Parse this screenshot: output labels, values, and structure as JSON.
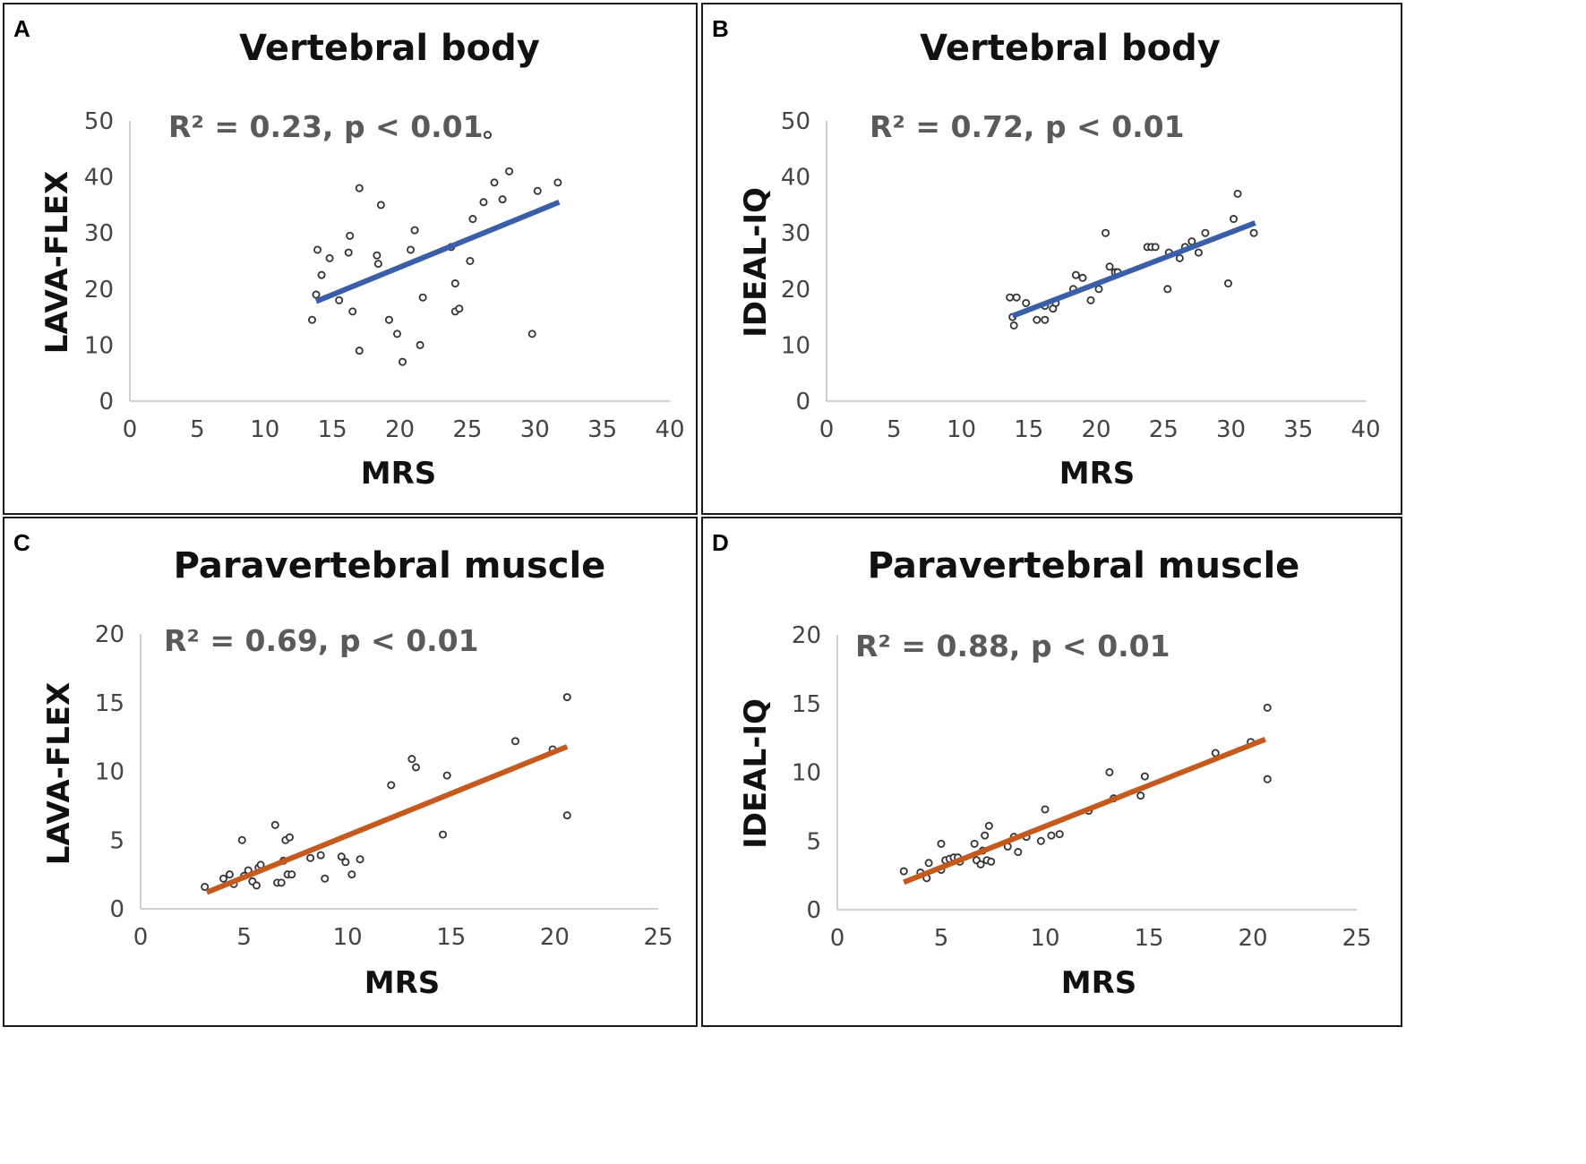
{
  "chart_data": [
    {
      "type": "scatter",
      "panel_label": "A",
      "title": "Vertebral body",
      "xlabel": "MRS",
      "ylabel": "LAVA-FLEX",
      "annotation": "R² = 0.23, p < 0.01",
      "xlim": [
        0,
        40
      ],
      "ylim": [
        0,
        50
      ],
      "xticks": [
        0,
        5,
        10,
        15,
        20,
        25,
        30,
        35,
        40
      ],
      "yticks": [
        0,
        10,
        20,
        30,
        40,
        50
      ],
      "trend_color": "#3a5ea8",
      "trendline": {
        "x": [
          13.8,
          31.8
        ],
        "y": [
          17.8,
          35.5
        ]
      },
      "points": [
        {
          "x": 13.5,
          "y": 14.5
        },
        {
          "x": 13.8,
          "y": 19.0
        },
        {
          "x": 13.9,
          "y": 27.0
        },
        {
          "x": 14.2,
          "y": 22.5
        },
        {
          "x": 14.8,
          "y": 25.5
        },
        {
          "x": 15.5,
          "y": 18.0
        },
        {
          "x": 16.2,
          "y": 26.5
        },
        {
          "x": 16.3,
          "y": 29.5
        },
        {
          "x": 16.5,
          "y": 16.0
        },
        {
          "x": 17.0,
          "y": 9.0
        },
        {
          "x": 17.0,
          "y": 38.0
        },
        {
          "x": 18.3,
          "y": 26.0
        },
        {
          "x": 18.4,
          "y": 24.5
        },
        {
          "x": 18.6,
          "y": 35.0
        },
        {
          "x": 19.2,
          "y": 14.5
        },
        {
          "x": 19.8,
          "y": 12.0
        },
        {
          "x": 20.2,
          "y": 7.0
        },
        {
          "x": 20.8,
          "y": 27.0
        },
        {
          "x": 21.1,
          "y": 30.5
        },
        {
          "x": 21.5,
          "y": 10.0
        },
        {
          "x": 21.7,
          "y": 18.5
        },
        {
          "x": 23.8,
          "y": 27.5
        },
        {
          "x": 24.1,
          "y": 21.0
        },
        {
          "x": 24.1,
          "y": 16.0
        },
        {
          "x": 24.4,
          "y": 16.5
        },
        {
          "x": 25.2,
          "y": 25.0
        },
        {
          "x": 25.4,
          "y": 32.5
        },
        {
          "x": 26.2,
          "y": 35.5
        },
        {
          "x": 26.5,
          "y": 47.5
        },
        {
          "x": 27.0,
          "y": 39.0
        },
        {
          "x": 27.6,
          "y": 36.0
        },
        {
          "x": 28.1,
          "y": 41.0
        },
        {
          "x": 29.8,
          "y": 12.0
        },
        {
          "x": 30.2,
          "y": 37.5
        },
        {
          "x": 31.7,
          "y": 39.0
        }
      ]
    },
    {
      "type": "scatter",
      "panel_label": "B",
      "title": "Vertebral body",
      "xlabel": "MRS",
      "ylabel": "IDEAL-IQ",
      "annotation": "R² = 0.72, p < 0.01",
      "xlim": [
        0,
        40
      ],
      "ylim": [
        0,
        50
      ],
      "xticks": [
        0,
        5,
        10,
        15,
        20,
        25,
        30,
        35,
        40
      ],
      "yticks": [
        0,
        10,
        20,
        30,
        40,
        50
      ],
      "trend_color": "#3a5ea8",
      "trendline": {
        "x": [
          13.8,
          31.8
        ],
        "y": [
          15.2,
          31.8
        ]
      },
      "points": [
        {
          "x": 13.6,
          "y": 18.5
        },
        {
          "x": 13.8,
          "y": 15.0
        },
        {
          "x": 13.9,
          "y": 13.5
        },
        {
          "x": 14.1,
          "y": 18.5
        },
        {
          "x": 14.8,
          "y": 17.5
        },
        {
          "x": 15.6,
          "y": 14.5
        },
        {
          "x": 16.2,
          "y": 14.5
        },
        {
          "x": 16.2,
          "y": 17.0
        },
        {
          "x": 16.8,
          "y": 16.5
        },
        {
          "x": 17.0,
          "y": 17.5
        },
        {
          "x": 18.3,
          "y": 20.0
        },
        {
          "x": 18.5,
          "y": 22.5
        },
        {
          "x": 19.0,
          "y": 22.0
        },
        {
          "x": 19.6,
          "y": 18.0
        },
        {
          "x": 20.2,
          "y": 20.0
        },
        {
          "x": 20.7,
          "y": 30.0
        },
        {
          "x": 21.0,
          "y": 24.0
        },
        {
          "x": 21.4,
          "y": 23.0
        },
        {
          "x": 21.6,
          "y": 23.0
        },
        {
          "x": 23.8,
          "y": 27.5
        },
        {
          "x": 24.1,
          "y": 27.5
        },
        {
          "x": 24.4,
          "y": 27.5
        },
        {
          "x": 25.3,
          "y": 20.0
        },
        {
          "x": 25.4,
          "y": 26.5
        },
        {
          "x": 26.2,
          "y": 25.5
        },
        {
          "x": 26.6,
          "y": 27.5
        },
        {
          "x": 27.1,
          "y": 28.5
        },
        {
          "x": 27.6,
          "y": 26.5
        },
        {
          "x": 28.1,
          "y": 30.0
        },
        {
          "x": 29.8,
          "y": 21.0
        },
        {
          "x": 30.2,
          "y": 32.5
        },
        {
          "x": 30.5,
          "y": 37.0
        },
        {
          "x": 31.7,
          "y": 30.0
        }
      ]
    },
    {
      "type": "scatter",
      "panel_label": "C",
      "title": "Paravertebral muscle",
      "xlabel": "MRS",
      "ylabel": "LAVA-FLEX",
      "annotation": "R² = 0.69, p < 0.01",
      "xlim": [
        0,
        25
      ],
      "ylim": [
        0,
        20
      ],
      "xticks": [
        0,
        5,
        10,
        15,
        20,
        25
      ],
      "yticks": [
        0,
        5,
        10,
        15,
        20
      ],
      "trend_color": "#c55a1e",
      "trendline": {
        "x": [
          3.2,
          20.6
        ],
        "y": [
          1.2,
          11.8
        ]
      },
      "points": [
        {
          "x": 3.1,
          "y": 1.6
        },
        {
          "x": 4.0,
          "y": 2.2
        },
        {
          "x": 4.3,
          "y": 2.5
        },
        {
          "x": 4.5,
          "y": 1.8
        },
        {
          "x": 4.9,
          "y": 5.0
        },
        {
          "x": 5.0,
          "y": 2.4
        },
        {
          "x": 5.2,
          "y": 2.8
        },
        {
          "x": 5.4,
          "y": 2.0
        },
        {
          "x": 5.6,
          "y": 1.7
        },
        {
          "x": 5.7,
          "y": 3.0
        },
        {
          "x": 5.8,
          "y": 3.2
        },
        {
          "x": 6.5,
          "y": 6.1
        },
        {
          "x": 6.6,
          "y": 1.9
        },
        {
          "x": 6.8,
          "y": 1.9
        },
        {
          "x": 6.9,
          "y": 3.5
        },
        {
          "x": 7.0,
          "y": 5.0
        },
        {
          "x": 7.2,
          "y": 5.2
        },
        {
          "x": 7.1,
          "y": 2.5
        },
        {
          "x": 7.3,
          "y": 2.5
        },
        {
          "x": 8.2,
          "y": 3.7
        },
        {
          "x": 8.7,
          "y": 3.9
        },
        {
          "x": 8.9,
          "y": 2.2
        },
        {
          "x": 9.7,
          "y": 3.8
        },
        {
          "x": 9.9,
          "y": 3.4
        },
        {
          "x": 10.2,
          "y": 2.5
        },
        {
          "x": 10.6,
          "y": 3.6
        },
        {
          "x": 12.1,
          "y": 9.0
        },
        {
          "x": 13.1,
          "y": 10.9
        },
        {
          "x": 13.3,
          "y": 10.3
        },
        {
          "x": 14.6,
          "y": 5.4
        },
        {
          "x": 14.8,
          "y": 9.7
        },
        {
          "x": 18.1,
          "y": 12.2
        },
        {
          "x": 19.9,
          "y": 11.6
        },
        {
          "x": 20.6,
          "y": 6.8
        },
        {
          "x": 20.6,
          "y": 15.4
        }
      ]
    },
    {
      "type": "scatter",
      "panel_label": "D",
      "title": "Paravertebral muscle",
      "xlabel": "MRS",
      "ylabel": "IDEAL-IQ",
      "annotation": "R² = 0.88, p < 0.01",
      "xlim": [
        0,
        25
      ],
      "ylim": [
        0,
        20
      ],
      "xticks": [
        0,
        5,
        10,
        15,
        20,
        25
      ],
      "yticks": [
        0,
        5,
        10,
        15,
        20
      ],
      "trend_color": "#c55a1e",
      "trendline": {
        "x": [
          3.2,
          20.6
        ],
        "y": [
          2.0,
          12.4
        ]
      },
      "points": [
        {
          "x": 3.2,
          "y": 2.8
        },
        {
          "x": 4.0,
          "y": 2.7
        },
        {
          "x": 4.3,
          "y": 2.3
        },
        {
          "x": 4.4,
          "y": 3.4
        },
        {
          "x": 5.0,
          "y": 4.8
        },
        {
          "x": 5.0,
          "y": 2.9
        },
        {
          "x": 5.2,
          "y": 3.6
        },
        {
          "x": 5.4,
          "y": 3.7
        },
        {
          "x": 5.6,
          "y": 3.8
        },
        {
          "x": 5.8,
          "y": 3.8
        },
        {
          "x": 5.9,
          "y": 3.5
        },
        {
          "x": 6.6,
          "y": 4.8
        },
        {
          "x": 6.7,
          "y": 3.6
        },
        {
          "x": 6.9,
          "y": 3.3
        },
        {
          "x": 7.0,
          "y": 4.3
        },
        {
          "x": 7.1,
          "y": 5.4
        },
        {
          "x": 7.2,
          "y": 3.6
        },
        {
          "x": 7.3,
          "y": 6.1
        },
        {
          "x": 7.4,
          "y": 3.5
        },
        {
          "x": 8.2,
          "y": 4.6
        },
        {
          "x": 8.5,
          "y": 5.3
        },
        {
          "x": 8.7,
          "y": 4.2
        },
        {
          "x": 9.1,
          "y": 5.3
        },
        {
          "x": 9.8,
          "y": 5.0
        },
        {
          "x": 10.0,
          "y": 7.3
        },
        {
          "x": 10.3,
          "y": 5.4
        },
        {
          "x": 10.7,
          "y": 5.5
        },
        {
          "x": 12.1,
          "y": 7.2
        },
        {
          "x": 13.1,
          "y": 10.0
        },
        {
          "x": 13.3,
          "y": 8.1
        },
        {
          "x": 14.6,
          "y": 8.3
        },
        {
          "x": 14.8,
          "y": 9.7
        },
        {
          "x": 18.2,
          "y": 11.4
        },
        {
          "x": 19.9,
          "y": 12.2
        },
        {
          "x": 20.7,
          "y": 9.5
        },
        {
          "x": 20.7,
          "y": 14.7
        }
      ]
    }
  ]
}
